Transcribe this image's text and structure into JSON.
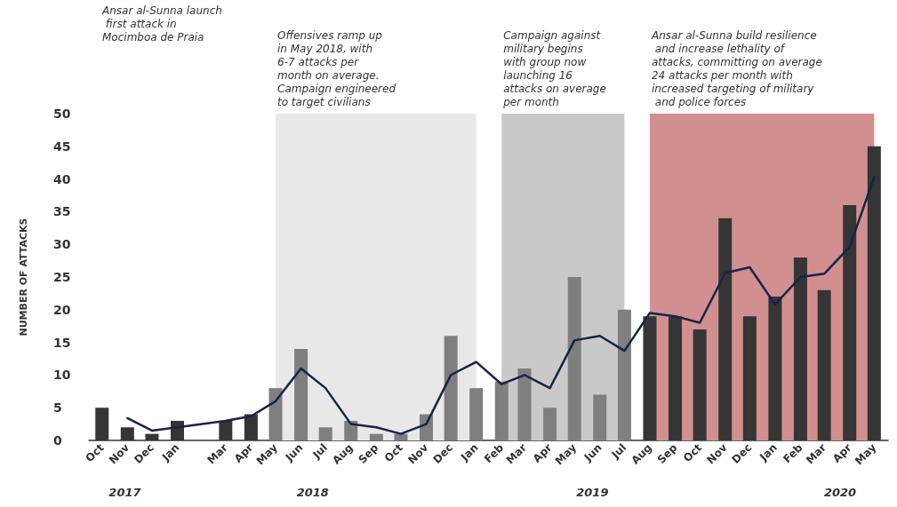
{
  "chart_data": {
    "type": "bar",
    "ylabel": "NUMBER OF ATTACKS",
    "x": [
      "2017-10",
      "2017-11",
      "2017-12",
      "2018-01",
      "2018-03",
      "2018-04",
      "2018-05",
      "2018-06",
      "2018-07",
      "2018-08",
      "2018-09",
      "2018-10",
      "2018-11",
      "2018-12",
      "2019-01",
      "2019-02",
      "2019-03",
      "2019-04",
      "2019-05",
      "2019-06",
      "2019-07",
      "2019-08",
      "2019-09",
      "2019-10",
      "2019-11",
      "2019-12",
      "2020-01",
      "2020-02",
      "2020-03",
      "2020-04",
      "2020-05"
    ],
    "xlim": [
      "2017-09-15",
      "2020-05-18"
    ],
    "xticks": [
      {
        "value": "2017-10",
        "label": "Oct"
      },
      {
        "value": "2017-11",
        "label": "Nov"
      },
      {
        "value": "2017-12",
        "label": "Dec"
      },
      {
        "value": "2018-01",
        "label": "Jan"
      },
      {
        "value": "2018-03",
        "label": "Mar"
      },
      {
        "value": "2018-04",
        "label": "Apr"
      },
      {
        "value": "2018-05",
        "label": "May"
      },
      {
        "value": "2018-06",
        "label": "Jun"
      },
      {
        "value": "2018-07",
        "label": "Jul"
      },
      {
        "value": "2018-08",
        "label": "Aug"
      },
      {
        "value": "2018-09",
        "label": "Sep"
      },
      {
        "value": "2018-10",
        "label": "Oct"
      },
      {
        "value": "2018-11",
        "label": "Nov"
      },
      {
        "value": "2018-12",
        "label": "Dec"
      },
      {
        "value": "2019-01",
        "label": "Jan"
      },
      {
        "value": "2019-02",
        "label": "Feb"
      },
      {
        "value": "2019-03",
        "label": "Mar"
      },
      {
        "value": "2019-04",
        "label": "Apr"
      },
      {
        "value": "2019-05",
        "label": "May"
      },
      {
        "value": "2019-06",
        "label": "Jun"
      },
      {
        "value": "2019-07",
        "label": "Jul"
      },
      {
        "value": "2019-08",
        "label": "Aug"
      },
      {
        "value": "2019-09",
        "label": "Sep"
      },
      {
        "value": "2019-10",
        "label": "Oct"
      },
      {
        "value": "2019-11",
        "label": "Nov"
      },
      {
        "value": "2019-12",
        "label": "Dec"
      },
      {
        "value": "2020-01",
        "label": "Jan"
      },
      {
        "value": "2020-02",
        "label": "Feb"
      },
      {
        "value": "2020-03",
        "label": "Mar"
      },
      {
        "value": "2020-04",
        "label": "Apr"
      },
      {
        "value": "2020-05",
        "label": "May"
      }
    ],
    "series": [
      {
        "values": [
          5,
          2,
          1,
          3,
          3,
          4,
          8,
          14,
          2,
          3,
          1,
          1,
          4,
          16,
          8,
          9,
          11,
          5,
          25,
          7,
          20,
          19,
          19,
          17,
          34,
          19,
          22,
          28,
          23,
          36,
          45
        ],
        "colors": [
          "#353535",
          "#353535",
          "#353535",
          "#353535",
          "#353535",
          "#353535",
          "#7f7f7f",
          "#7f7f7f",
          "#7f7f7f",
          "#7f7f7f",
          "#7f7f7f",
          "#7f7f7f",
          "#7f7f7f",
          "#7f7f7f",
          "#7f7f7f",
          "#7f7f7f",
          "#7f7f7f",
          "#7f7f7f",
          "#7f7f7f",
          "#7f7f7f",
          "#7f7f7f",
          "#353535",
          "#353535",
          "#353535",
          "#353535",
          "#353535",
          "#353535",
          "#353535",
          "#353535",
          "#353535",
          "#353535"
        ]
      },
      {
        "type": "line",
        "color": "#14254a",
        "values": [
          null,
          3.4,
          1.5,
          2,
          3,
          3.7,
          6,
          11,
          8,
          2.5,
          2,
          1,
          2.5,
          10,
          12,
          8.6,
          10,
          8,
          15.3,
          16,
          13.7,
          19.5,
          19,
          18,
          25.6,
          26.5,
          20.8,
          25,
          25.5,
          29.6,
          40.3
        ]
      }
    ],
    "ylim": [
      0,
      50
    ],
    "yticks": [
      0,
      5,
      10,
      15,
      20,
      25,
      30,
      35,
      40,
      45,
      50
    ],
    "grid": false,
    "marker": "none",
    "line_style": "solid",
    "bands": [
      {
        "axis": "x",
        "from": "2018-05",
        "to": "2019-01",
        "color": "#e8e8e8",
        "label": "Offensives ramp up in May 2018, with 6-7 attacks per month on average. Campaign engineered to target civilians"
      },
      {
        "axis": "x",
        "from": "2019-02",
        "to": "2019-07",
        "color": "#c9c9c9",
        "label": "Campaign against military begins with group now launching 16 attacks on average per month"
      },
      {
        "axis": "x",
        "from": "2019-08",
        "to": "2020-05",
        "color": "#d18f8f",
        "label": "Ansar al-Sunna build resilience and increase lethality of attacks, committing on average 24 attacks per month with increased targeting of military and police forces"
      }
    ],
    "annotations": [
      "Ansar al-Sunna launch first attack in Mocimboa de Praia",
      "2017",
      "2018",
      "2019",
      "2020"
    ]
  }
}
